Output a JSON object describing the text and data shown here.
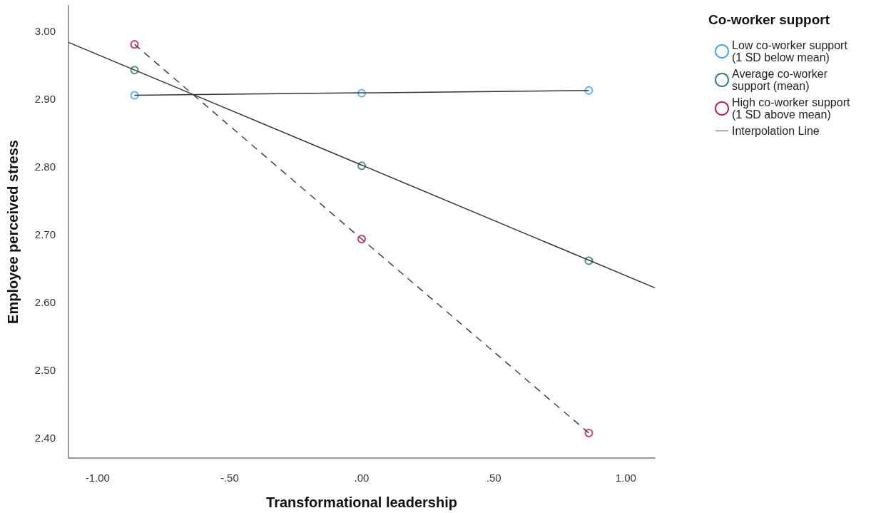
{
  "chart_data": {
    "type": "scatter",
    "xlabel": "Transformational leadership",
    "ylabel": "Employee perceived stress",
    "legend_title": "Co-worker support",
    "xlim": [
      -1.11,
      1.11
    ],
    "xticks": [
      {
        "value": -1,
        "label": "-1.00"
      },
      {
        "value": -0.5,
        "label": "-.50"
      },
      {
        "value": 0,
        "label": ".00"
      },
      {
        "value": 0.5,
        "label": ".50"
      },
      {
        "value": 1,
        "label": "1.00"
      }
    ],
    "ylim": [
      2.37,
      3.037
    ],
    "yticks": [
      {
        "value": 2.4,
        "label": "2.40"
      },
      {
        "value": 2.5,
        "label": "2.50"
      },
      {
        "value": 2.6,
        "label": "2.60"
      },
      {
        "value": 2.7,
        "label": "2.70"
      },
      {
        "value": 2.8,
        "label": "2.80"
      },
      {
        "value": 2.9,
        "label": "2.90"
      },
      {
        "value": 3.0,
        "label": "3.00"
      }
    ],
    "grid": false,
    "legend": "right",
    "marker": "circle",
    "series": [
      {
        "name": "Low co-worker support (1 SD below mean)",
        "color": "#42a5f5",
        "x": [
          -0.86,
          0,
          0.86
        ],
        "values": [
          2.905,
          2.908,
          2.912
        ]
      },
      {
        "name": "Average co-worker support (mean)",
        "color": "#2e7d74",
        "x": [
          -0.86,
          0,
          0.86
        ],
        "values": [
          2.942,
          2.801,
          2.661
        ]
      },
      {
        "name": "High co-worker support (1 SD above mean)",
        "color": "#c2185b",
        "x": [
          -0.86,
          0,
          0.86
        ],
        "values": [
          2.98,
          2.693,
          2.407
        ]
      },
      {
        "name": "Interpolation Line",
        "type": "line",
        "color": "#333333",
        "marker": "none",
        "line_style": "solid",
        "x": [
          -1.11,
          1.11
        ],
        "values": [
          2.983,
          2.621
        ]
      },
      {
        "type": "line",
        "color": "#333333",
        "marker": "none",
        "line_style": "solid",
        "x": [
          -0.86,
          0.86
        ],
        "values": [
          2.905,
          2.912
        ]
      },
      {
        "type": "line",
        "color": "#444444",
        "marker": "none",
        "line_style": "dashed",
        "x": [
          -0.86,
          0,
          0.86
        ],
        "values": [
          2.98,
          2.693,
          2.407
        ]
      }
    ]
  }
}
